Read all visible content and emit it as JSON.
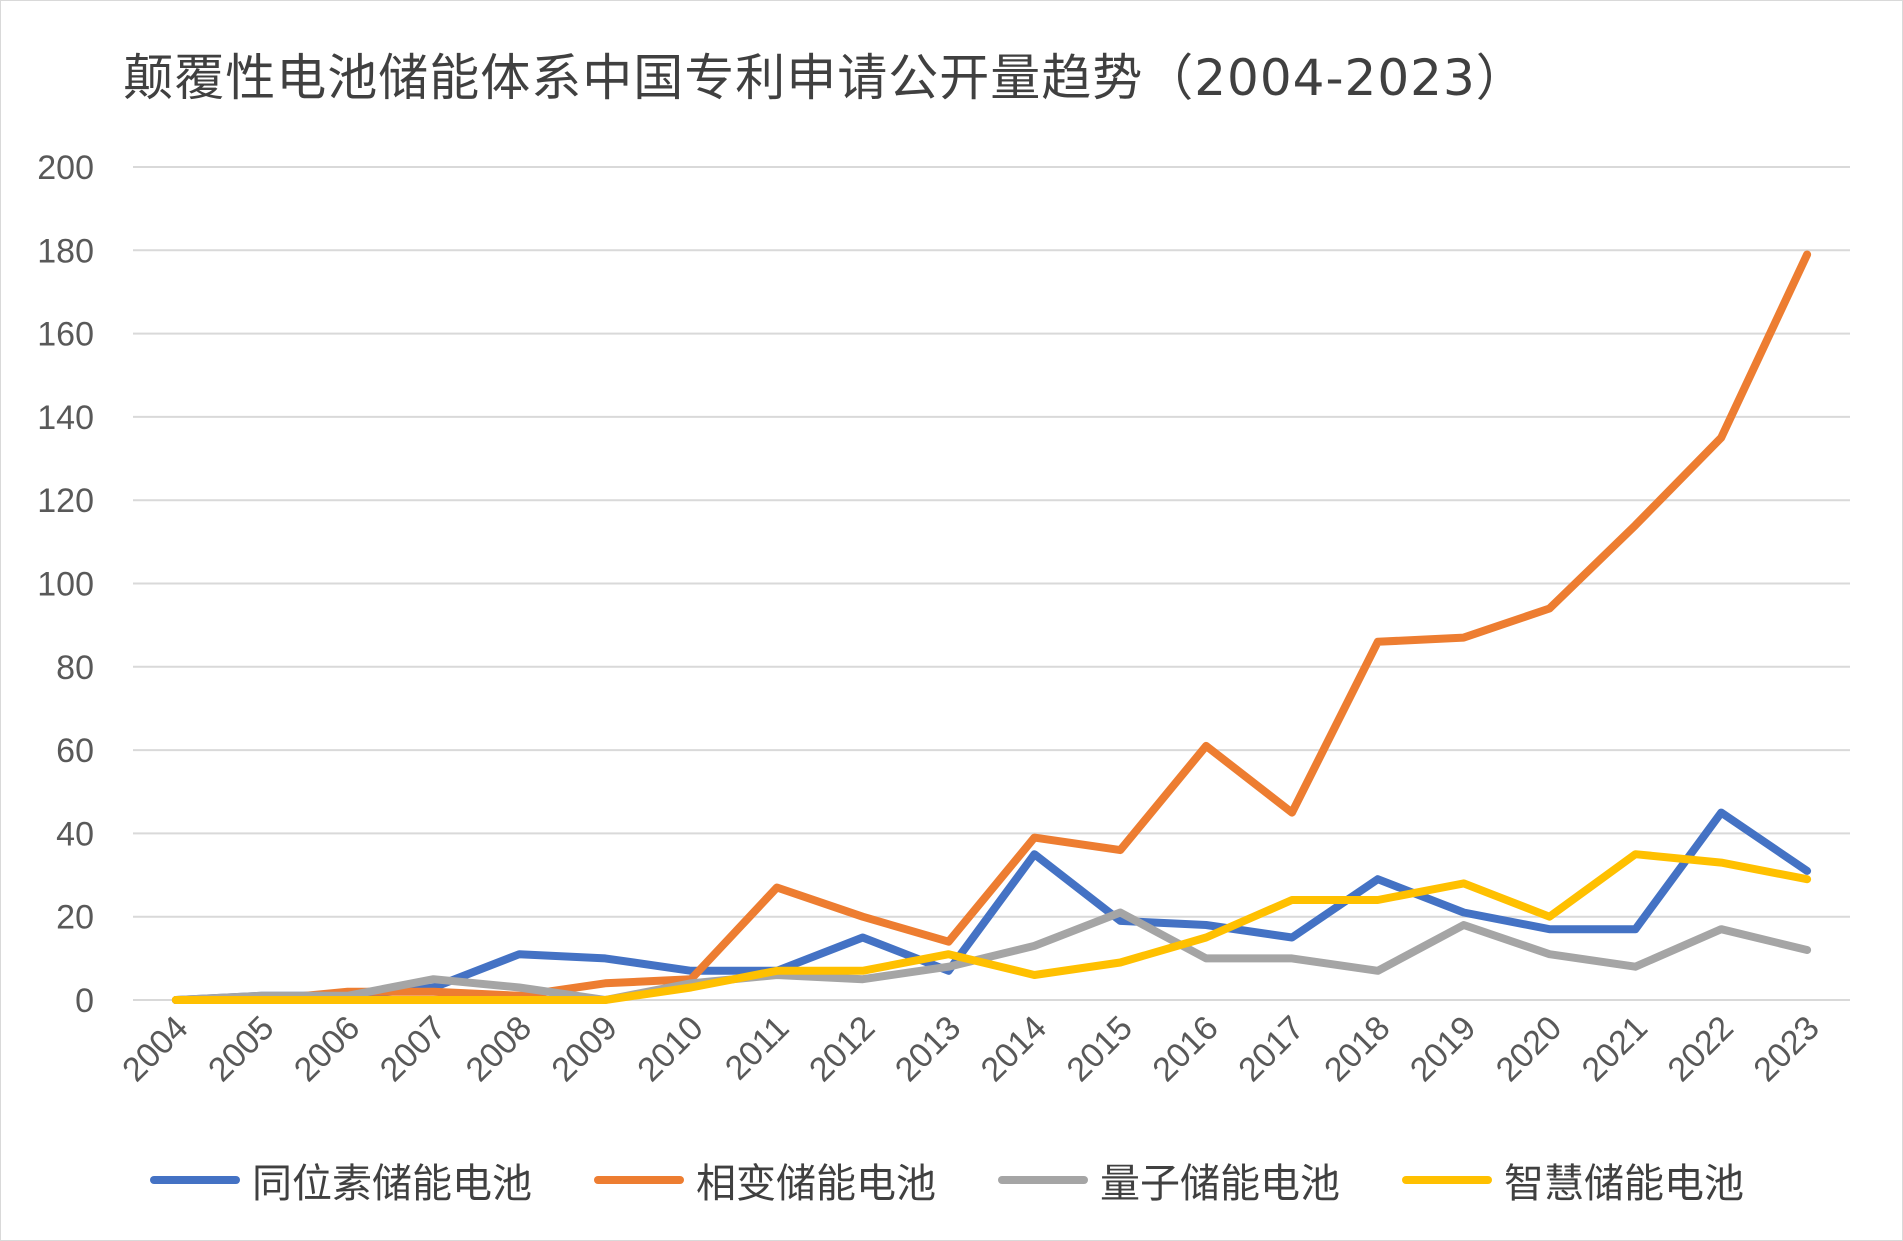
{
  "chart_data": {
    "type": "line",
    "title": "颠覆性电池储能体系中国专利申请公开量趋势（2004-2023）",
    "xlabel": "",
    "ylabel": "",
    "ylim": [
      0,
      200
    ],
    "yticks": [
      0,
      20,
      40,
      60,
      80,
      100,
      120,
      140,
      160,
      180,
      200
    ],
    "grid": true,
    "legend_position": "bottom",
    "categories": [
      "2004",
      "2005",
      "2006",
      "2007",
      "2008",
      "2009",
      "2010",
      "2011",
      "2012",
      "2013",
      "2014",
      "2015",
      "2016",
      "2017",
      "2018",
      "2019",
      "2020",
      "2021",
      "2022",
      "2023"
    ],
    "series": [
      {
        "name": "同位素储能电池",
        "color": "#4472C4",
        "values": [
          0,
          1,
          1,
          3,
          11,
          10,
          7,
          7,
          15,
          7,
          35,
          19,
          18,
          15,
          29,
          21,
          17,
          17,
          45,
          31
        ]
      },
      {
        "name": "相变储能电池",
        "color": "#ED7D31",
        "values": [
          0,
          0,
          2,
          2,
          1,
          4,
          5,
          27,
          20,
          14,
          39,
          36,
          61,
          45,
          86,
          87,
          94,
          114,
          135,
          179
        ]
      },
      {
        "name": "量子储能电池",
        "color": "#A5A5A5",
        "values": [
          0,
          1,
          1,
          5,
          3,
          0,
          4,
          6,
          5,
          8,
          13,
          21,
          10,
          10,
          7,
          18,
          11,
          8,
          17,
          12
        ]
      },
      {
        "name": "智慧储能电池",
        "color": "#FFC000",
        "values": [
          0,
          0,
          0,
          0,
          0,
          0,
          3,
          7,
          7,
          11,
          6,
          9,
          15,
          24,
          24,
          28,
          20,
          35,
          33,
          29
        ]
      }
    ]
  }
}
